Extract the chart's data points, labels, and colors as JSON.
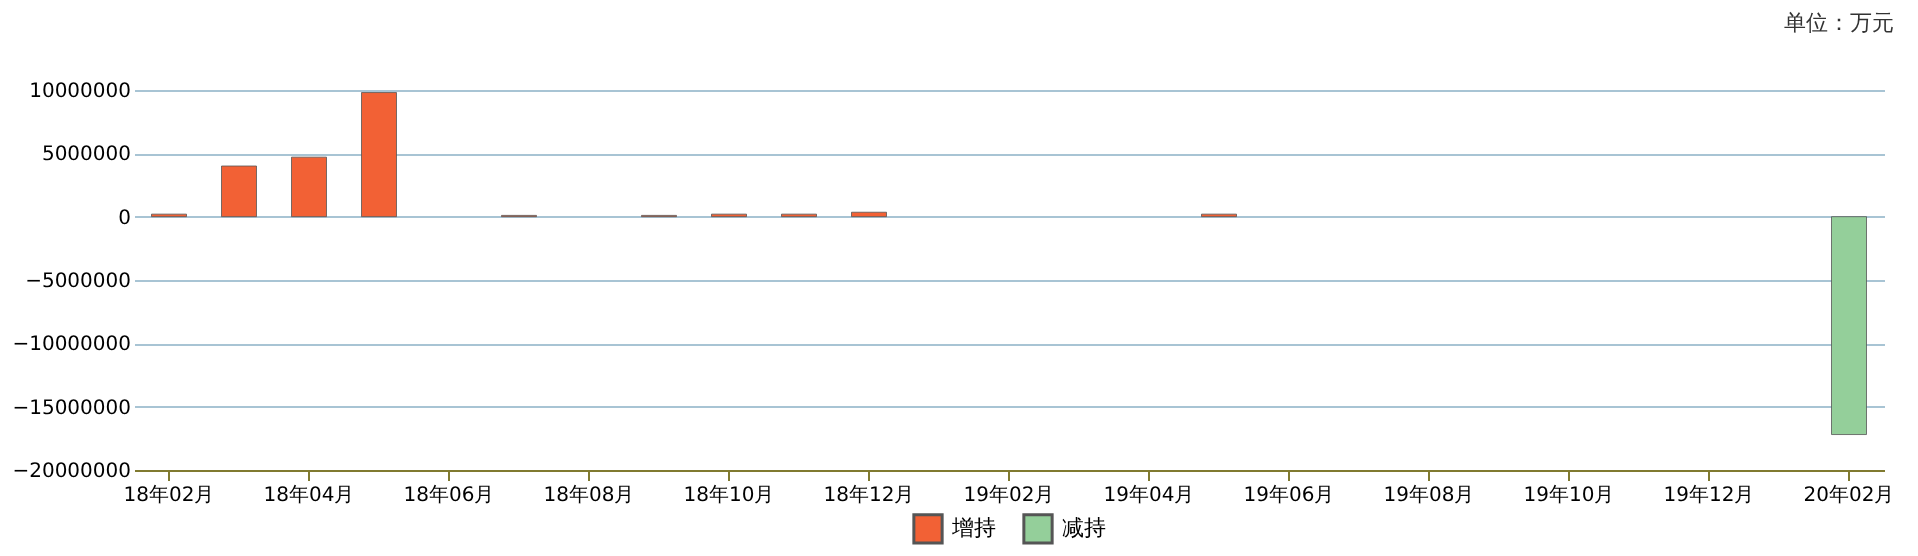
{
  "chart_data": {
    "type": "bar",
    "categories": [
      "18年02月",
      null,
      "18年04月",
      null,
      "18年06月",
      null,
      "18年08月",
      null,
      "18年10月",
      null,
      "18年12月",
      null,
      "19年02月",
      null,
      "19年04月",
      null,
      "19年06月",
      null,
      "19年08月",
      null,
      "19年10月",
      null,
      "19年12月",
      null,
      "20年02月"
    ],
    "series": [
      {
        "name": "增持",
        "color": "#f26135",
        "values": [
          200000,
          4000000,
          4700000,
          9800000,
          null,
          100000,
          null,
          100000,
          200000,
          200000,
          350000,
          null,
          null,
          null,
          null,
          200000,
          null,
          null,
          null,
          null,
          null,
          null,
          null,
          null,
          null
        ]
      },
      {
        "name": "减持",
        "color": "#94cf9a",
        "values": [
          null,
          null,
          null,
          null,
          null,
          null,
          null,
          null,
          null,
          null,
          null,
          null,
          null,
          null,
          null,
          null,
          null,
          null,
          null,
          null,
          null,
          null,
          null,
          null,
          -17200000
        ]
      }
    ],
    "ylim": [
      -20000000,
      10000000
    ],
    "yticks": [
      -20000000,
      -15000000,
      -10000000,
      -5000000,
      0,
      5000000,
      10000000
    ],
    "grid": "y",
    "legend": "bottom",
    "annotations": [
      "单位：万元"
    ]
  }
}
